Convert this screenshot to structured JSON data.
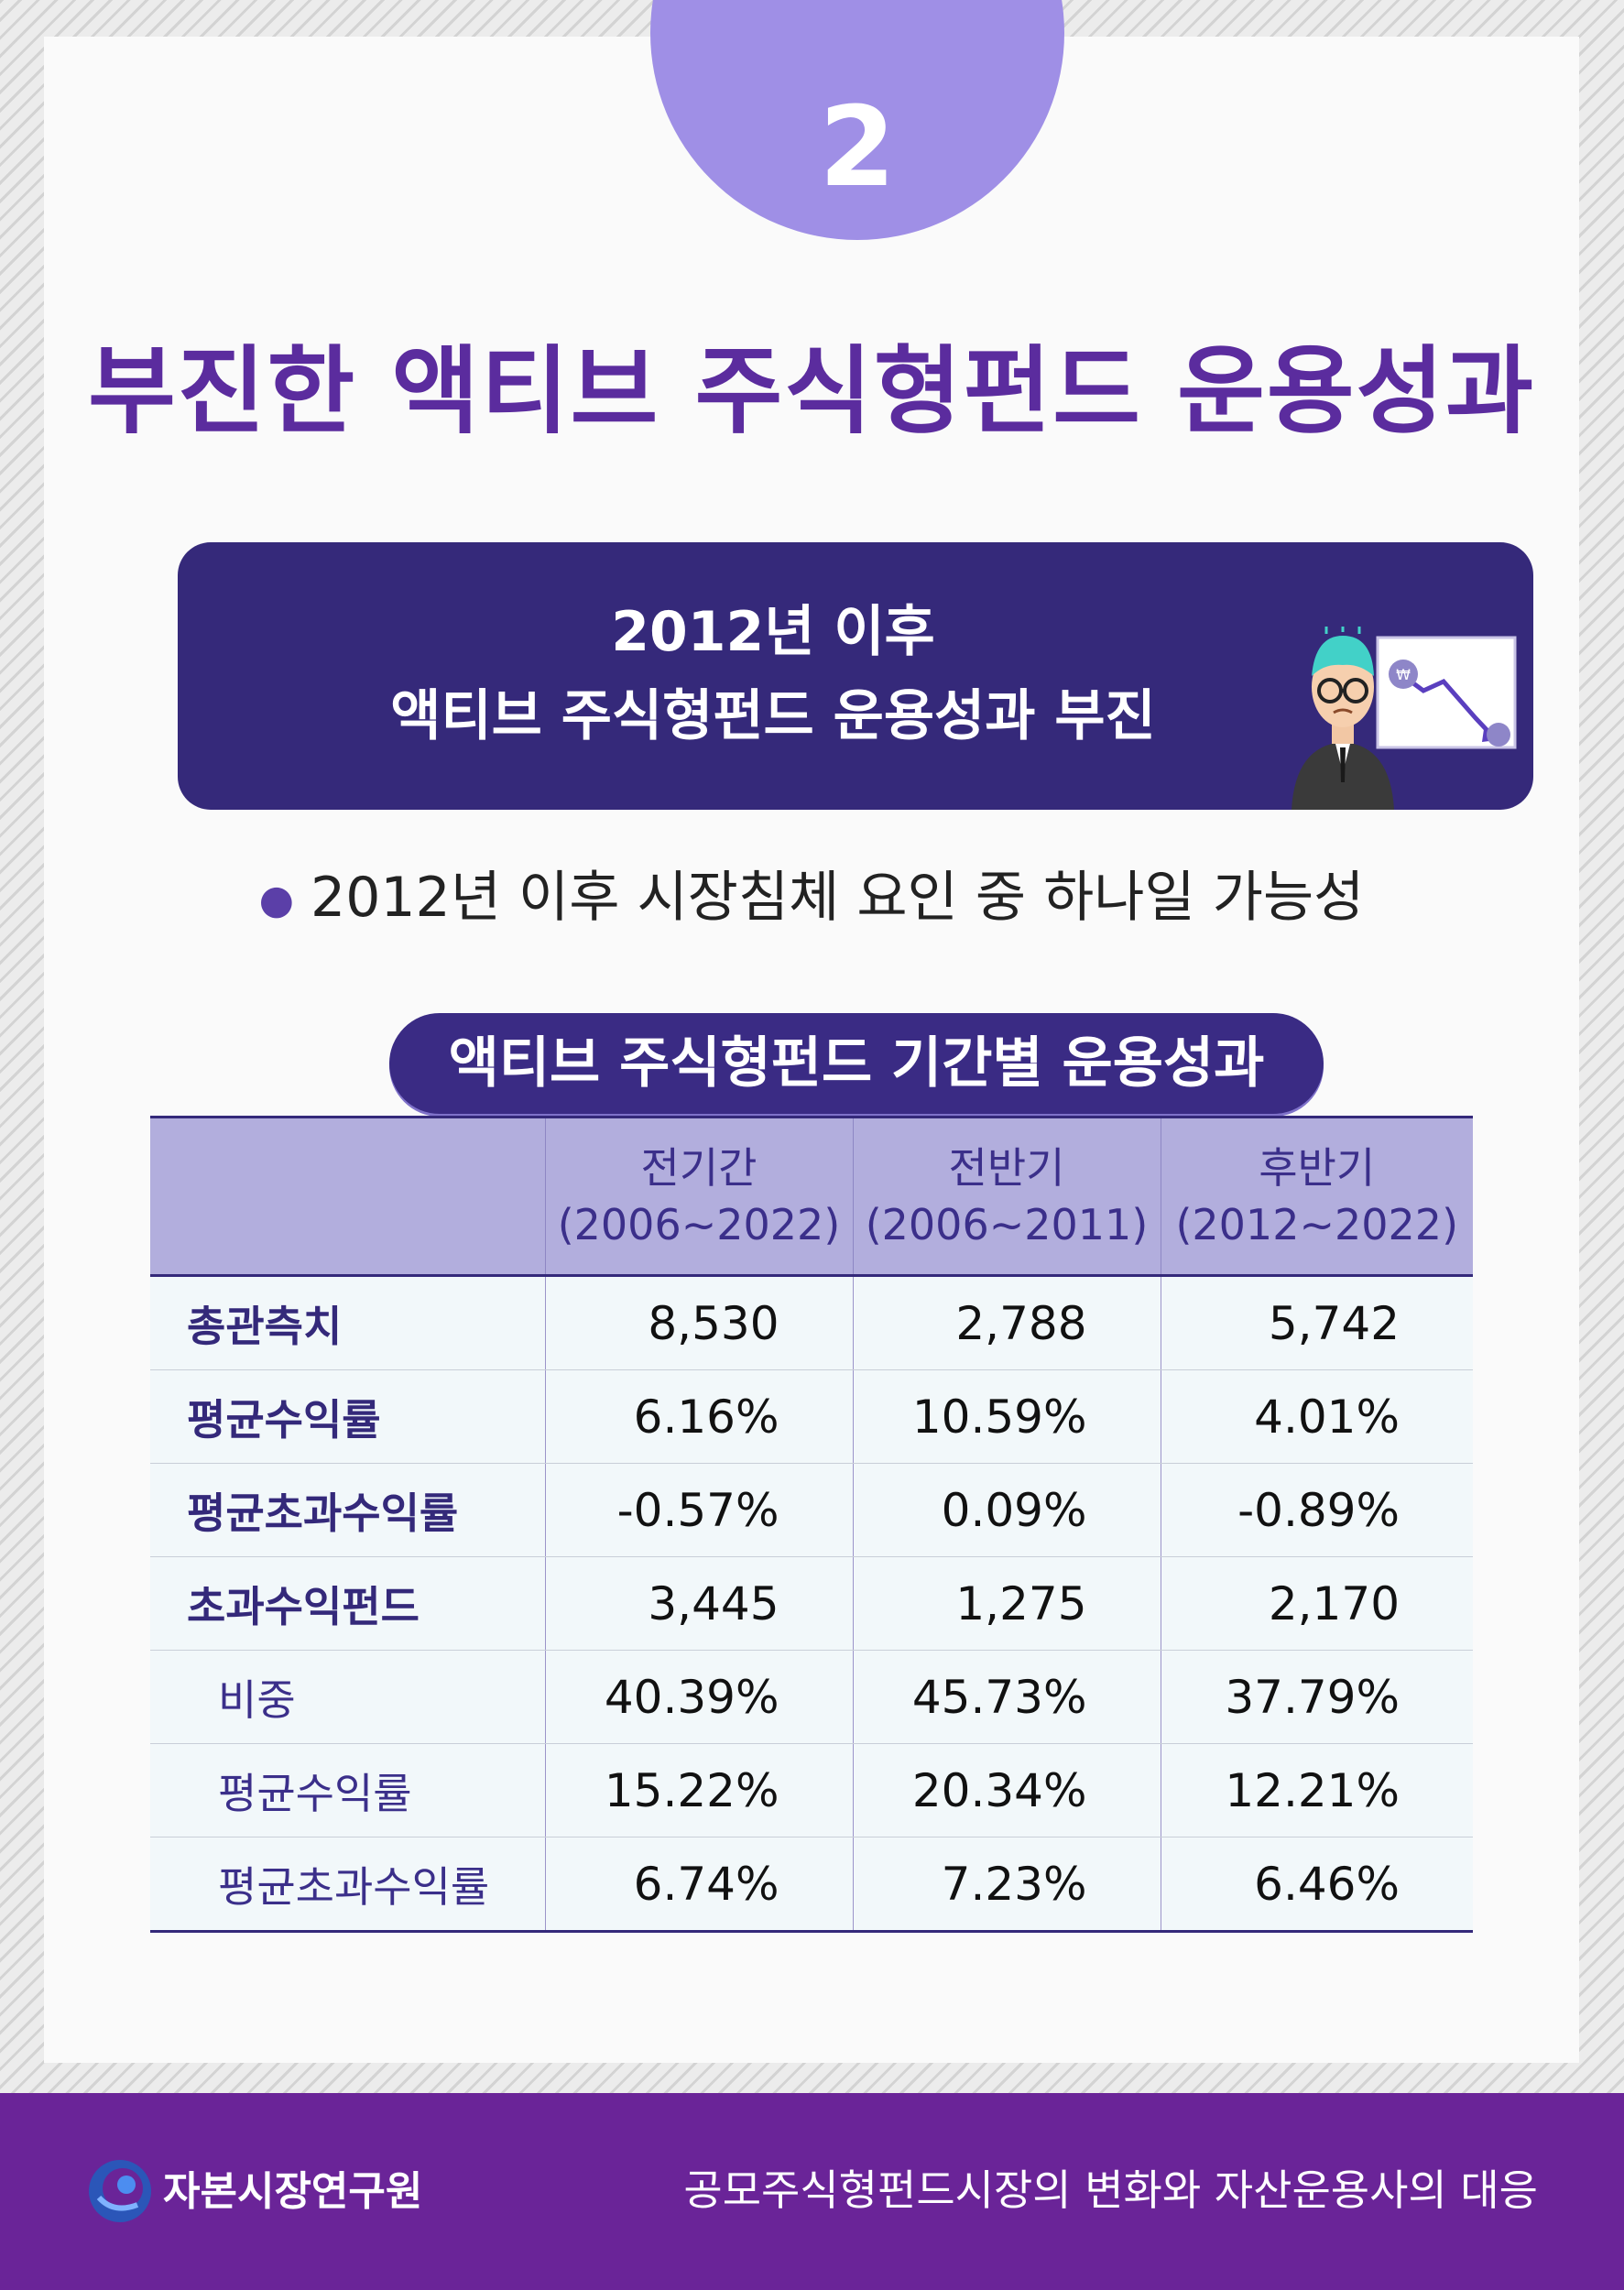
{
  "page_number": "2",
  "title": "부진한 액티브 주식형펀드 운용성과",
  "banner": {
    "line1": "2012년 이후",
    "line2": "액티브 주식형펀드 운용성과 부진"
  },
  "bullet": "2012년 이후 시장침체 요인 중 하나일 가능성",
  "table_title": "액티브 주식형펀드 기간별 운용성과",
  "table": {
    "header_line1": [
      "전기간",
      "전반기",
      "후반기"
    ],
    "header_line2": [
      "(2006~2022)",
      "(2006~2011)",
      "(2012~2022)"
    ],
    "rows": [
      {
        "label": "총관측치",
        "values": [
          "8,530",
          "2,788",
          "5,742"
        ]
      },
      {
        "label": "평균수익률",
        "values": [
          "6.16%",
          "10.59%",
          "4.01%"
        ]
      },
      {
        "label": "평균초과수익률",
        "values": [
          "-0.57%",
          "0.09%",
          "-0.89%"
        ]
      },
      {
        "label": "초과수익펀드",
        "values": [
          "3,445",
          "1,275",
          "2,170"
        ]
      },
      {
        "label": "비중",
        "values": [
          "40.39%",
          "45.73%",
          "37.79%"
        ]
      },
      {
        "label": "평균수익률",
        "values": [
          "15.22%",
          "20.34%",
          "12.21%"
        ]
      },
      {
        "label": "평균초과수익률",
        "values": [
          "6.74%",
          "7.23%",
          "6.46%"
        ]
      }
    ]
  },
  "footer": {
    "org_name": "자본시장연구원",
    "doc_title": "공모주식형펀드시장의 변화와 자산운용사의 대응"
  },
  "colors": {
    "title": "#5b2c9e",
    "badge": "#9f8fe6",
    "banner": "#35297a",
    "table_header": "#b2aedd",
    "footer": "#6a2498"
  }
}
